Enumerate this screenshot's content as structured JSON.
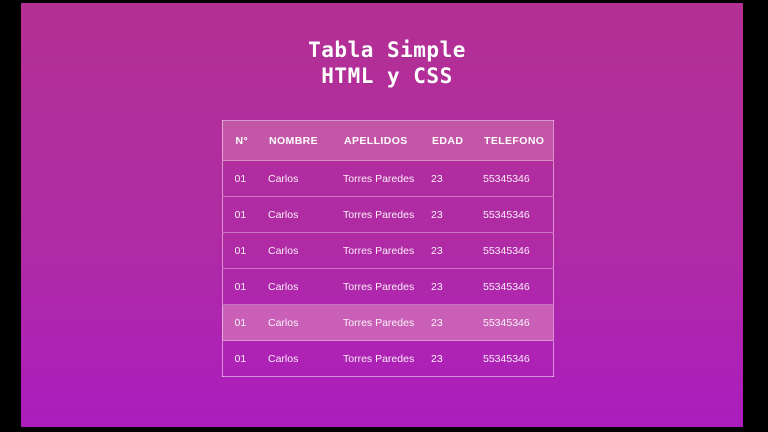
{
  "colors": {
    "letterbox": "#000000",
    "background_top": "#b43094",
    "background_bottom": "#ac1dbe",
    "header_background": "#c456a8",
    "highlight_background": "#ca5fb7"
  },
  "title": {
    "line1": "Tabla Simple",
    "line2": "HTML y CSS"
  },
  "table": {
    "columns": [
      "N°",
      "NOMBRE",
      "APELLIDOS",
      "EDAD",
      "TELEFONO"
    ],
    "rows": [
      [
        "01",
        "Carlos",
        "Torres Paredes",
        "23",
        "55345346"
      ],
      [
        "01",
        "Carlos",
        "Torres Paredes",
        "23",
        "55345346"
      ],
      [
        "01",
        "Carlos",
        "Torres Paredes",
        "23",
        "55345346"
      ],
      [
        "01",
        "Carlos",
        "Torres Paredes",
        "23",
        "55345346"
      ],
      [
        "01",
        "Carlos",
        "Torres Paredes",
        "23",
        "55345346"
      ],
      [
        "01",
        "Carlos",
        "Torres Paredes",
        "23",
        "55345346"
      ]
    ],
    "highlighted_row_index": 4
  }
}
